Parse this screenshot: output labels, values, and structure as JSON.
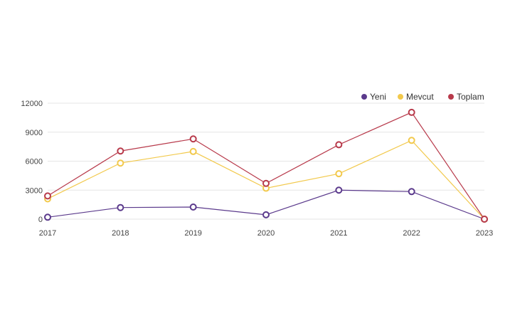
{
  "chart_data": {
    "type": "line",
    "title": "",
    "xlabel": "",
    "ylabel": "",
    "x": [
      "2017",
      "2018",
      "2019",
      "2020",
      "2021",
      "2022",
      "2023"
    ],
    "yticks": [
      "0",
      "3000",
      "6000",
      "9000",
      "12000"
    ],
    "ylim": [
      0,
      12000
    ],
    "grid": true,
    "legend_position": "top-right",
    "series": [
      {
        "name": "Yeni",
        "color": "#5b3a8c",
        "values": [
          200,
          1200,
          1250,
          450,
          3000,
          2850,
          0
        ]
      },
      {
        "name": "Mevcut",
        "color": "#f2c94c",
        "values": [
          2100,
          5800,
          7000,
          3200,
          4700,
          8150,
          0
        ]
      },
      {
        "name": "Toplam",
        "color": "#b83a4b",
        "values": [
          2400,
          7050,
          8300,
          3700,
          7700,
          11050,
          0
        ]
      }
    ]
  }
}
